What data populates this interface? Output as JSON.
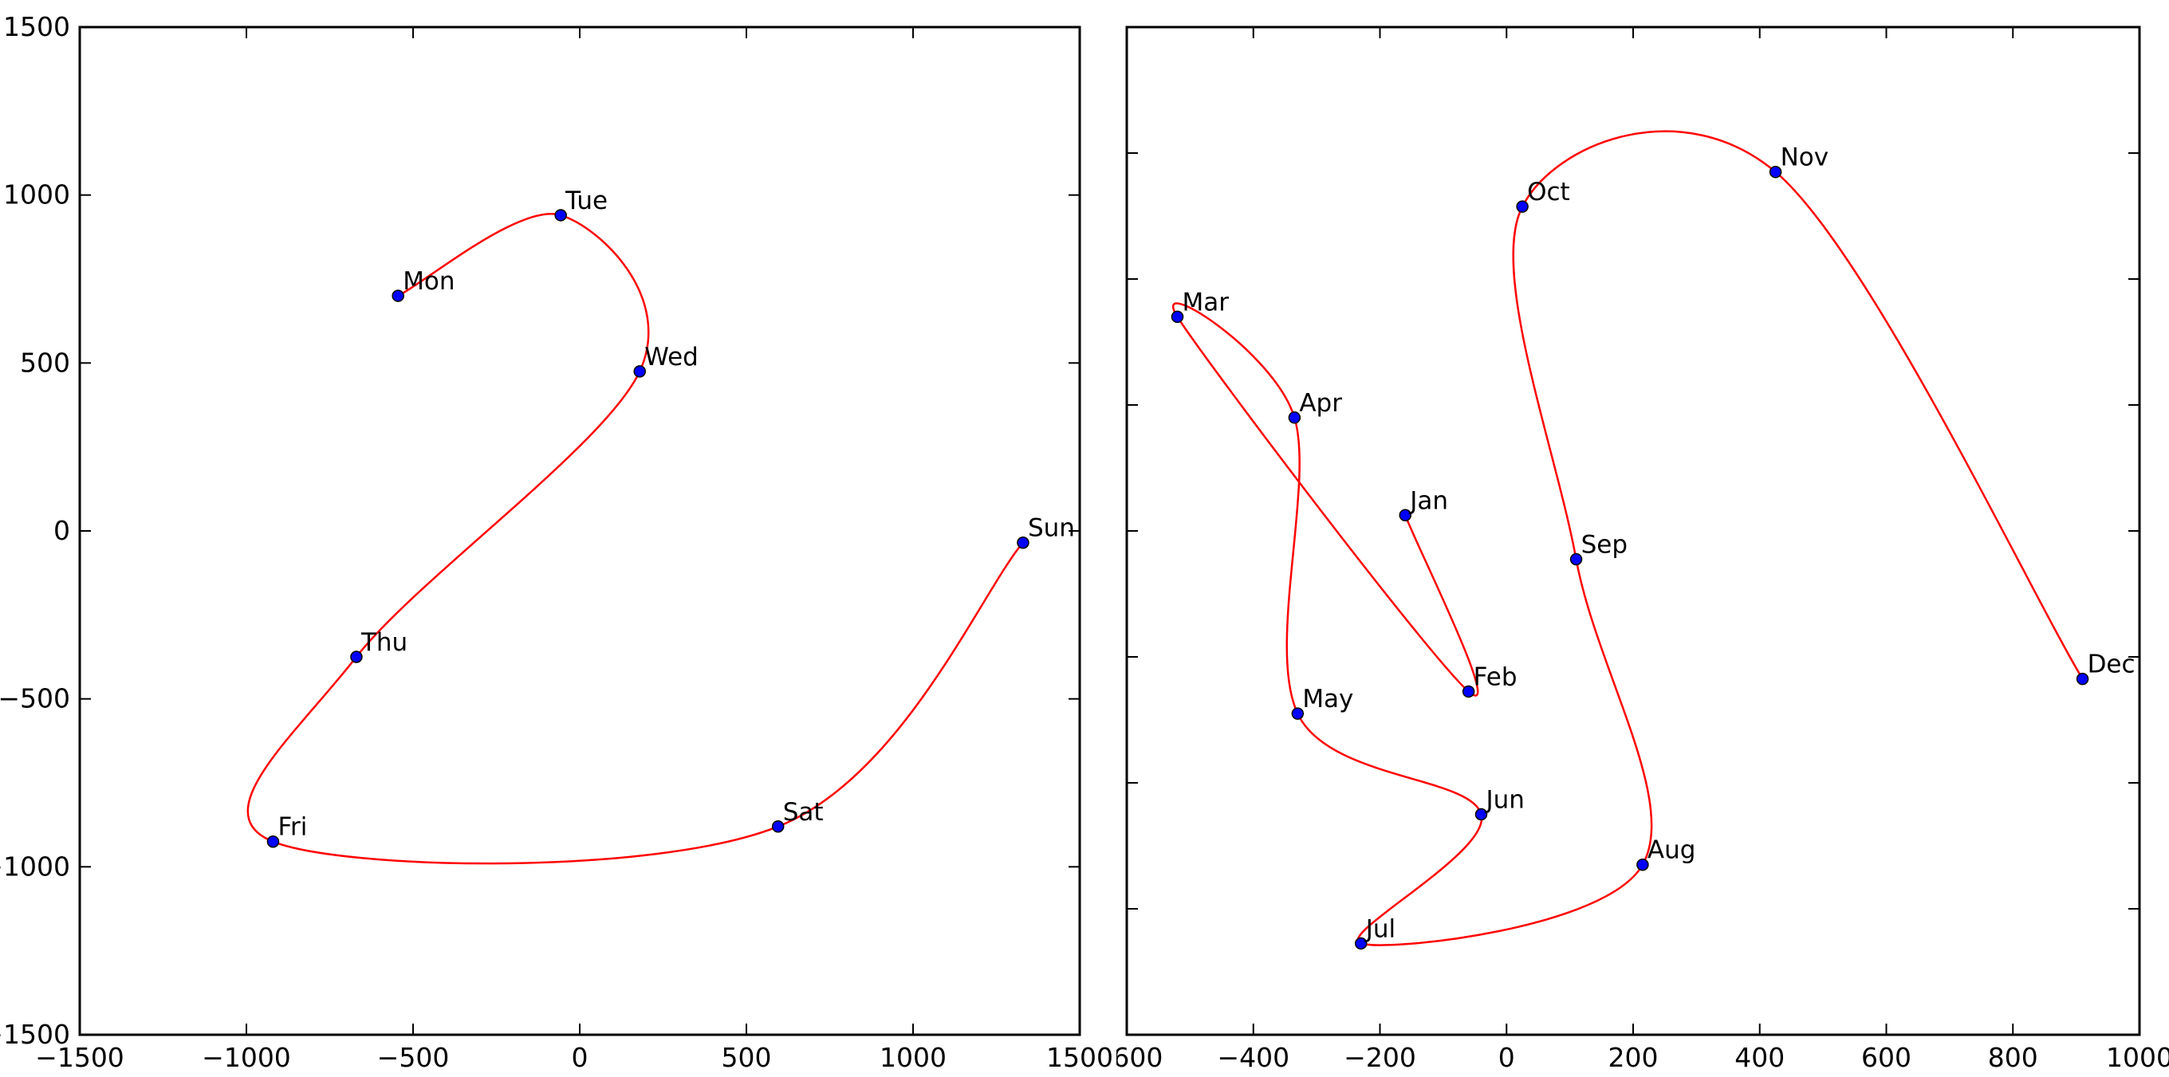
{
  "figure": {
    "background": "#ffffff",
    "axis_color": "#000000",
    "tick_label_color": "#000000"
  },
  "chart_data": [
    {
      "type": "scatter",
      "name": "weekday-parametric-curve",
      "title": "",
      "xlabel": "",
      "ylabel": "",
      "grid": false,
      "legend": null,
      "curve": "smooth-spline-through-points",
      "curve_color": "#ff0000",
      "marker_color": "#0000ff",
      "marker_edge_color": "#000000",
      "xlim": [
        -1500,
        1500
      ],
      "ylim": [
        -1500,
        1500
      ],
      "xticks": [
        {
          "value": -1500,
          "label": "−1500"
        },
        {
          "value": -1000,
          "label": "−1000"
        },
        {
          "value": -500,
          "label": "−500"
        },
        {
          "value": 0,
          "label": "0"
        },
        {
          "value": 500,
          "label": "500"
        },
        {
          "value": 1000,
          "label": "1000"
        },
        {
          "value": 1500,
          "label": "1500"
        }
      ],
      "yticks": [
        {
          "value": 1500,
          "label": "1500"
        },
        {
          "value": 1000,
          "label": "1000"
        },
        {
          "value": 500,
          "label": "500"
        },
        {
          "value": 0,
          "label": "0"
        },
        {
          "value": -500,
          "label": "−500"
        },
        {
          "value": -1000,
          "label": "−1000"
        },
        {
          "value": -1500,
          "label": "−1500"
        }
      ],
      "points": [
        {
          "label": "Mon",
          "x": -545,
          "y": 700
        },
        {
          "label": "Tue",
          "x": -57,
          "y": 940
        },
        {
          "label": "Wed",
          "x": 180,
          "y": 475
        },
        {
          "label": "Thu",
          "x": -670,
          "y": -375
        },
        {
          "label": "Fri",
          "x": -920,
          "y": -925
        },
        {
          "label": "Sat",
          "x": 595,
          "y": -880
        },
        {
          "label": "Sun",
          "x": 1330,
          "y": -35
        }
      ]
    },
    {
      "type": "scatter",
      "name": "month-parametric-curve",
      "title": "",
      "xlabel": "",
      "ylabel": "",
      "grid": false,
      "legend": null,
      "curve": "smooth-spline-through-points",
      "curve_color": "#ff0000",
      "marker_color": "#0000ff",
      "marker_edge_color": "#000000",
      "xlim": [
        -600,
        1000
      ],
      "ylim": [
        -800,
        800
      ],
      "xticks": [
        {
          "value": -600,
          "label": "−600"
        },
        {
          "value": -400,
          "label": "−400"
        },
        {
          "value": -200,
          "label": "−200"
        },
        {
          "value": 0,
          "label": "0"
        },
        {
          "value": 200,
          "label": "200"
        },
        {
          "value": 400,
          "label": "400"
        },
        {
          "value": 600,
          "label": "600"
        },
        {
          "value": 800,
          "label": "800"
        },
        {
          "value": 1000,
          "label": "1000"
        }
      ],
      "yticks": [
        {
          "value": 600,
          "label": ""
        },
        {
          "value": 400,
          "label": ""
        },
        {
          "value": 200,
          "label": ""
        },
        {
          "value": 0,
          "label": ""
        },
        {
          "value": -200,
          "label": ""
        },
        {
          "value": -400,
          "label": ""
        },
        {
          "value": -600,
          "label": ""
        }
      ],
      "points": [
        {
          "label": "Jan",
          "x": -160,
          "y": 25
        },
        {
          "label": "Feb",
          "x": -60,
          "y": -255
        },
        {
          "label": "Mar",
          "x": -520,
          "y": 340
        },
        {
          "label": "Apr",
          "x": -335,
          "y": 180
        },
        {
          "label": "May",
          "x": -330,
          "y": -290
        },
        {
          "label": "Jun",
          "x": -40,
          "y": -450
        },
        {
          "label": "Jul",
          "x": -230,
          "y": -655
        },
        {
          "label": "Aug",
          "x": 215,
          "y": -530
        },
        {
          "label": "Sep",
          "x": 110,
          "y": -45
        },
        {
          "label": "Oct",
          "x": 25,
          "y": 515
        },
        {
          "label": "Nov",
          "x": 425,
          "y": 570
        },
        {
          "label": "Dec",
          "x": 910,
          "y": -235
        }
      ]
    }
  ]
}
